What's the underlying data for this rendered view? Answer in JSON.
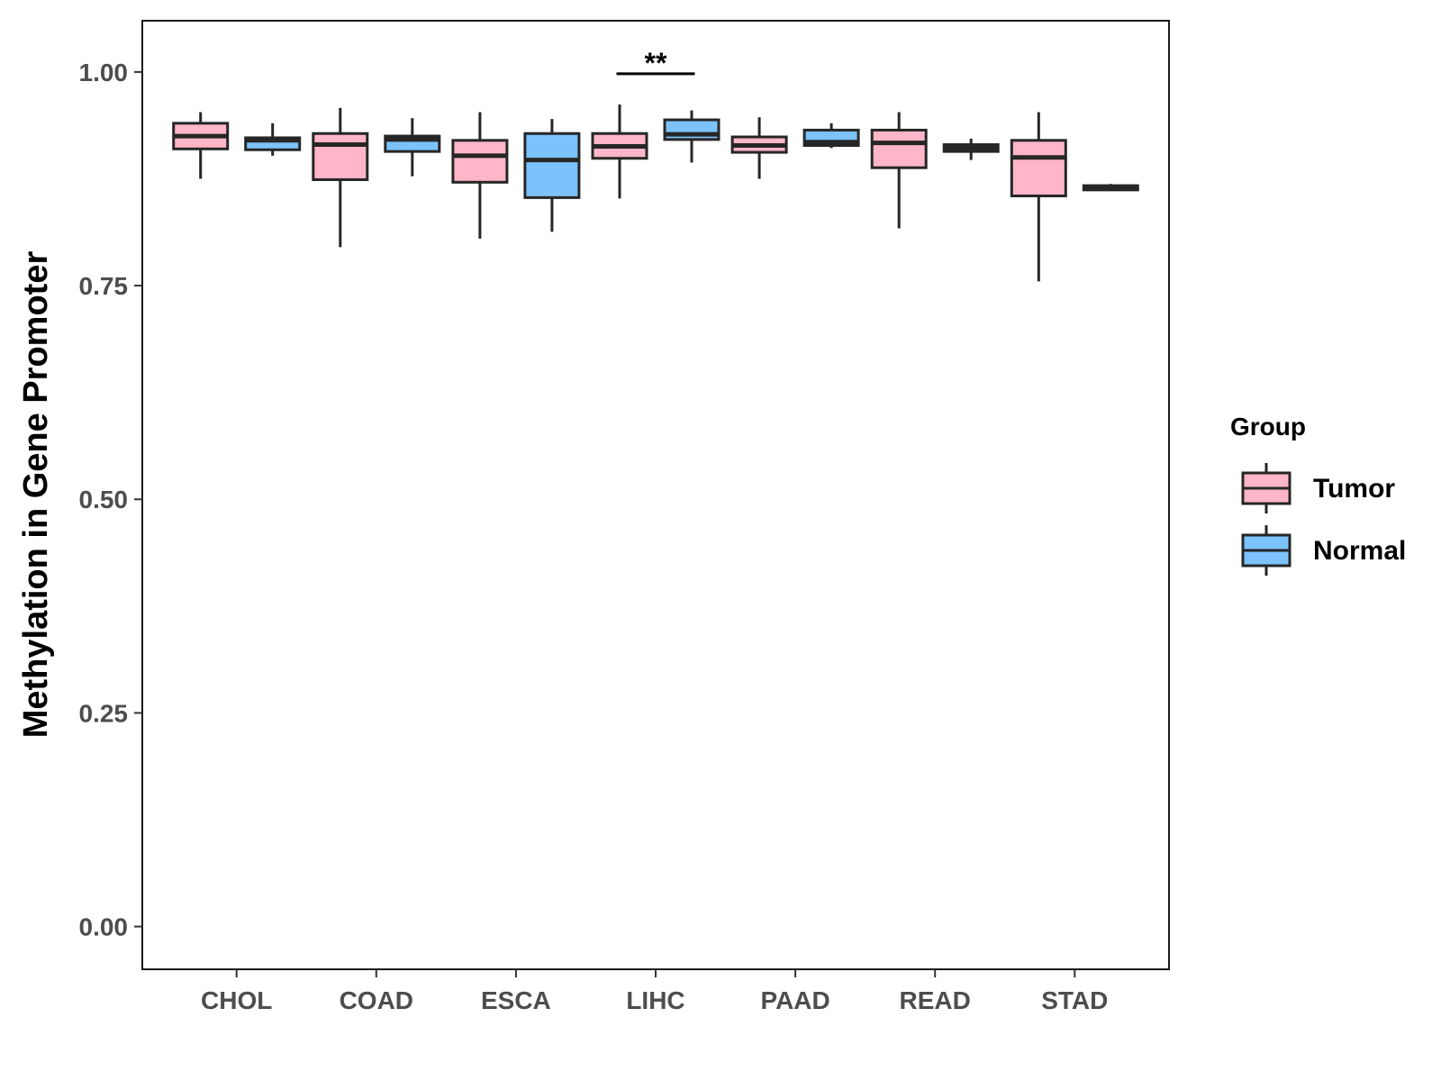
{
  "chart_data": {
    "type": "boxplot",
    "title": "",
    "xlabel": "",
    "ylabel": "Methylation in Gene Promoter",
    "ylim": [
      -0.05,
      1.06
    ],
    "yticks": [
      0.0,
      0.25,
      0.5,
      0.75,
      1.0
    ],
    "ytick_labels": [
      "0.00",
      "0.25",
      "0.50",
      "0.75",
      "1.00"
    ],
    "categories": [
      "CHOL",
      "COAD",
      "ESCA",
      "LIHC",
      "PAAD",
      "READ",
      "STAD"
    ],
    "grid": false,
    "legend": {
      "title": "Group",
      "position": "right",
      "entries": [
        {
          "name": "Tumor",
          "color": "#ffb6c8"
        },
        {
          "name": "Normal",
          "color": "#7cc3fb"
        }
      ]
    },
    "series": [
      {
        "name": "Tumor",
        "color": "#ffb6c8",
        "boxes": [
          {
            "category": "CHOL",
            "min": 0.875,
            "q1": 0.91,
            "median": 0.925,
            "q3": 0.94,
            "max": 0.953
          },
          {
            "category": "COAD",
            "min": 0.795,
            "q1": 0.874,
            "median": 0.915,
            "q3": 0.928,
            "max": 0.958
          },
          {
            "category": "ESCA",
            "min": 0.805,
            "q1": 0.871,
            "median": 0.902,
            "q3": 0.92,
            "max": 0.953
          },
          {
            "category": "LIHC",
            "min": 0.852,
            "q1": 0.899,
            "median": 0.913,
            "q3": 0.928,
            "max": 0.962
          },
          {
            "category": "PAAD",
            "min": 0.875,
            "q1": 0.906,
            "median": 0.914,
            "q3": 0.924,
            "max": 0.947
          },
          {
            "category": "READ",
            "min": 0.817,
            "q1": 0.888,
            "median": 0.917,
            "q3": 0.932,
            "max": 0.953
          },
          {
            "category": "STAD",
            "min": 0.755,
            "q1": 0.855,
            "median": 0.9,
            "q3": 0.92,
            "max": 0.953
          }
        ]
      },
      {
        "name": "Normal",
        "color": "#7cc3fb",
        "boxes": [
          {
            "category": "CHOL",
            "min": 0.902,
            "q1": 0.909,
            "median": 0.92,
            "q3": 0.923,
            "max": 0.94
          },
          {
            "category": "COAD",
            "min": 0.878,
            "q1": 0.907,
            "median": 0.921,
            "q3": 0.925,
            "max": 0.946
          },
          {
            "category": "ESCA",
            "min": 0.813,
            "q1": 0.853,
            "median": 0.897,
            "q3": 0.928,
            "max": 0.945
          },
          {
            "category": "LIHC",
            "min": 0.894,
            "q1": 0.921,
            "median": 0.927,
            "q3": 0.944,
            "max": 0.955
          },
          {
            "category": "PAAD",
            "min": 0.911,
            "q1": 0.914,
            "median": 0.918,
            "q3": 0.932,
            "max": 0.94
          },
          {
            "category": "READ",
            "min": 0.897,
            "q1": 0.907,
            "median": 0.911,
            "q3": 0.915,
            "max": 0.922
          },
          {
            "category": "STAD",
            "min": 0.861,
            "q1": 0.862,
            "median": 0.864,
            "q3": 0.867,
            "max": 0.869
          }
        ]
      }
    ],
    "annotations": [
      {
        "category": "LIHC",
        "text": "**",
        "y": 0.998
      }
    ]
  }
}
